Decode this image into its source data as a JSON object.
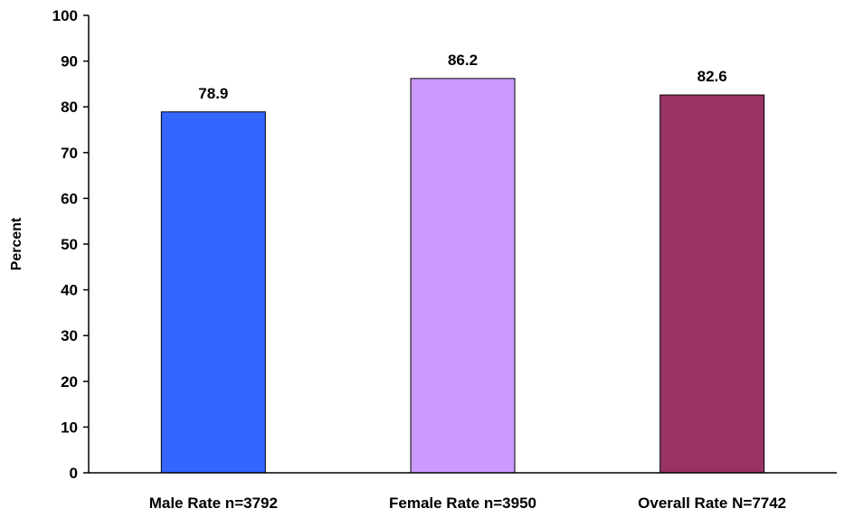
{
  "chart_data": {
    "type": "bar",
    "title": "",
    "xlabel": "",
    "ylabel": "Percent",
    "ylim": [
      0,
      100
    ],
    "ytick_step": 10,
    "grid": false,
    "categories": [
      "Male Rate n=3792",
      "Female Rate n=3950",
      "Overall Rate N=7742"
    ],
    "values": [
      78.9,
      86.2,
      82.6
    ],
    "data_labels": [
      "78.9",
      "86.2",
      "82.6"
    ],
    "colors": [
      "#3366ff",
      "#cc99ff",
      "#993366"
    ]
  }
}
